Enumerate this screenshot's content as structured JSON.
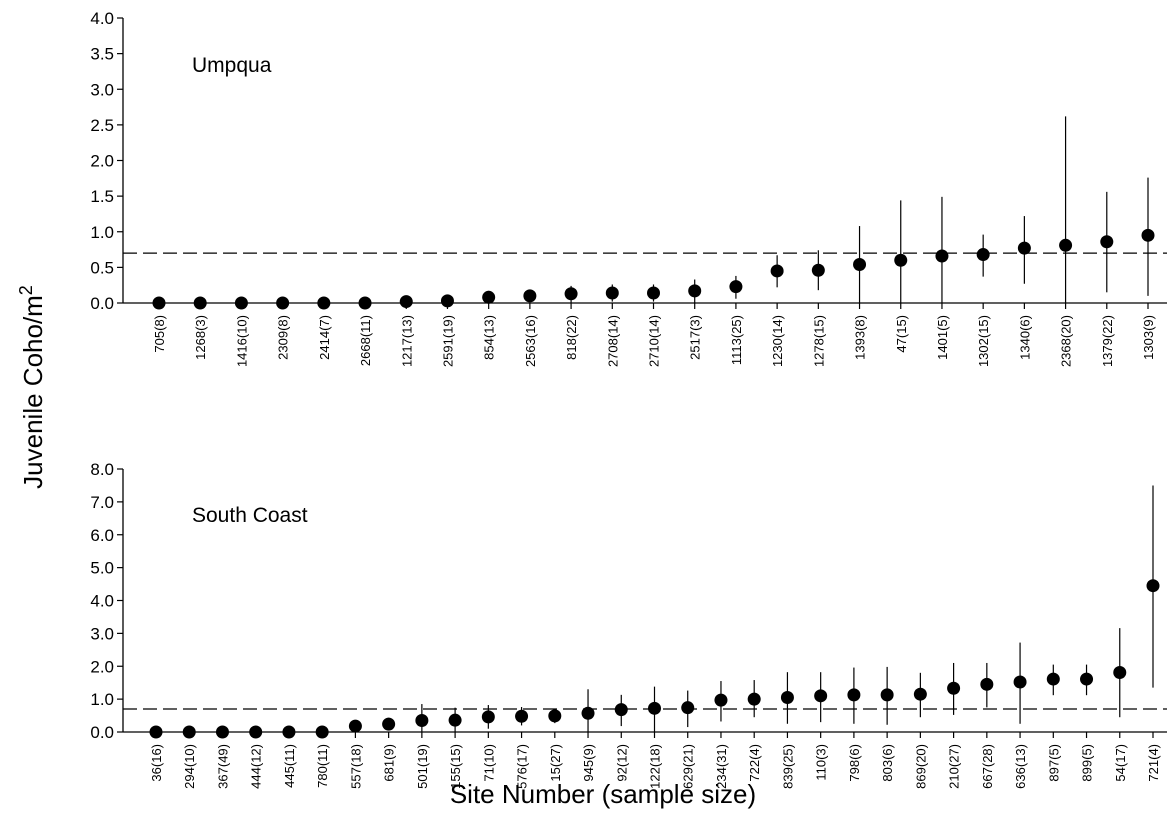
{
  "figure": {
    "ylabel": "Juvenile Coho/m",
    "ylabel_sup": "2",
    "xlabel": "Site Number (sample size)",
    "reference_line_value": 0.7
  },
  "chart_data": [
    {
      "type": "scatter",
      "panel_label": "Umpqua",
      "ylim": [
        0,
        4.0
      ],
      "yticks": [
        "0.0",
        "0.5",
        "1.0",
        "1.5",
        "2.0",
        "2.5",
        "3.0",
        "3.5",
        "4.0"
      ],
      "categories": [
        "705(8)",
        "1268(3)",
        "1416(10)",
        "2309(8)",
        "2414(7)",
        "2668(11)",
        "1217(13)",
        "2591(19)",
        "854(13)",
        "2563(16)",
        "818(22)",
        "2708(14)",
        "2710(14)",
        "2517(3)",
        "1113(25)",
        "1230(14)",
        "1278(15)",
        "1393(8)",
        "47(15)",
        "1401(5)",
        "1302(15)",
        "1340(6)",
        "2368(20)",
        "1379(22)",
        "1303(9)"
      ],
      "values": [
        0.0,
        0.0,
        0.0,
        0.0,
        0.0,
        0.0,
        0.02,
        0.03,
        0.08,
        0.1,
        0.13,
        0.14,
        0.14,
        0.17,
        0.23,
        0.45,
        0.46,
        0.54,
        0.6,
        0.66,
        0.68,
        0.77,
        0.81,
        0.86,
        0.95
      ],
      "err_low": [
        0.0,
        0.0,
        0.0,
        0.0,
        0.0,
        0.0,
        0.0,
        0.0,
        0.0,
        0.05,
        0.0,
        0.02,
        0.02,
        0.0,
        0.06,
        0.22,
        0.18,
        0.0,
        0.0,
        0.0,
        0.37,
        0.27,
        0.0,
        0.15,
        0.1
      ],
      "err_high": [
        0.0,
        0.0,
        0.0,
        0.0,
        0.0,
        0.0,
        0.04,
        0.06,
        0.17,
        0.15,
        0.24,
        0.26,
        0.26,
        0.33,
        0.38,
        0.67,
        0.74,
        1.08,
        1.44,
        1.49,
        0.96,
        1.22,
        2.62,
        1.56,
        1.76
      ],
      "grid": false
    },
    {
      "type": "scatter",
      "panel_label": "South Coast",
      "ylim": [
        0,
        8.0
      ],
      "yticks": [
        "0.0",
        "1.0",
        "2.0",
        "3.0",
        "4.0",
        "5.0",
        "6.0",
        "7.0",
        "8.0"
      ],
      "categories": [
        "36(16)",
        "294(10)",
        "367(49)",
        "444(12)",
        "445(11)",
        "780(11)",
        "557(18)",
        "681(9)",
        "501(19)",
        "155(15)",
        "71(10)",
        "576(17)",
        "15(27)",
        "945(9)",
        "92(12)",
        "122(18)",
        "629(21)",
        "234(31)",
        "722(4)",
        "839(25)",
        "110(3)",
        "798(6)",
        "803(6)",
        "869(20)",
        "210(27)",
        "667(28)",
        "636(13)",
        "897(5)",
        "899(5)",
        "54(17)",
        "721(4)"
      ],
      "values": [
        0.0,
        0.0,
        0.0,
        0.0,
        0.0,
        0.0,
        0.18,
        0.24,
        0.35,
        0.36,
        0.46,
        0.48,
        0.49,
        0.57,
        0.68,
        0.72,
        0.74,
        0.97,
        1.0,
        1.05,
        1.1,
        1.13,
        1.13,
        1.15,
        1.33,
        1.45,
        1.52,
        1.61,
        1.61,
        1.81,
        4.45
      ],
      "err_low": [
        0.0,
        0.0,
        0.0,
        0.0,
        0.0,
        0.0,
        0.05,
        0.05,
        0.0,
        0.0,
        0.1,
        0.2,
        0.27,
        0.0,
        0.18,
        0.0,
        0.15,
        0.32,
        0.45,
        0.25,
        0.3,
        0.25,
        0.22,
        0.45,
        0.52,
        0.75,
        0.25,
        1.12,
        1.12,
        0.45,
        1.35
      ],
      "err_high": [
        0.0,
        0.0,
        0.0,
        0.0,
        0.0,
        0.0,
        0.31,
        0.43,
        0.85,
        0.74,
        0.82,
        0.76,
        0.71,
        1.3,
        1.13,
        1.38,
        1.26,
        1.55,
        1.58,
        1.82,
        1.82,
        1.96,
        1.98,
        1.8,
        2.1,
        2.1,
        2.72,
        2.05,
        2.05,
        3.16,
        7.5
      ],
      "grid": false
    }
  ]
}
